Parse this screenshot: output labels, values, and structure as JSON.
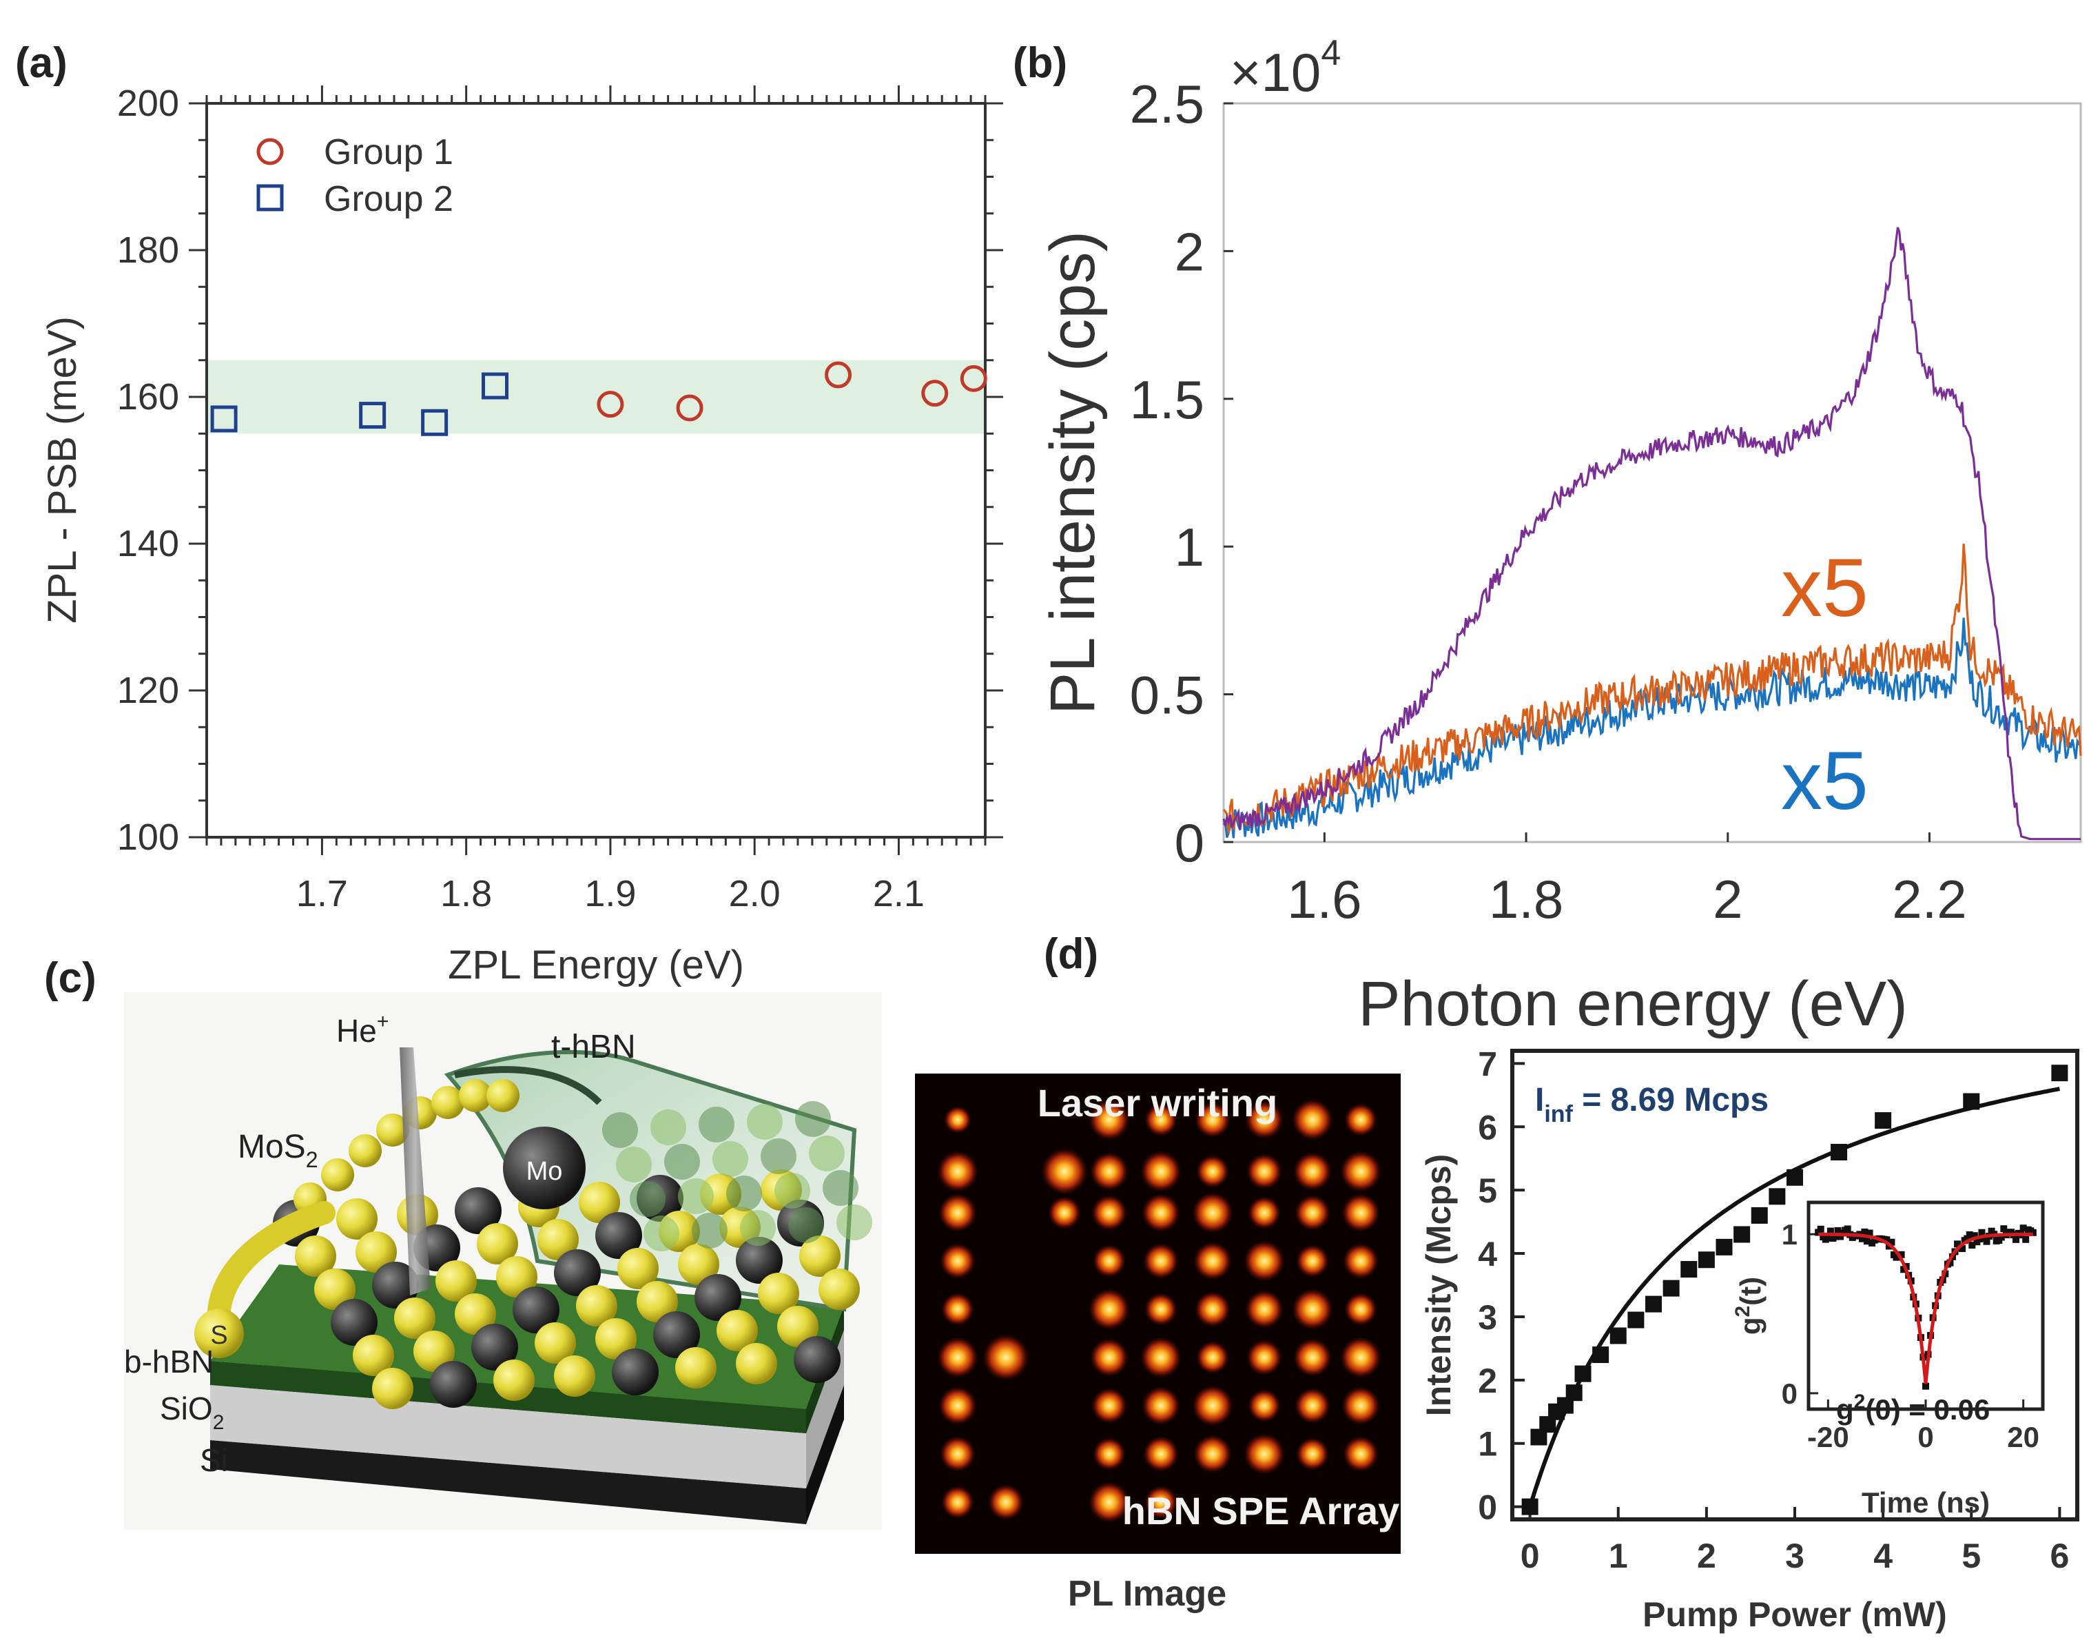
{
  "panels": {
    "a": {
      "label": "(a)",
      "title": "",
      "xlabel": "ZPL Energy (eV)",
      "ylabel": "ZPL - PSB (meV)",
      "legend": [
        {
          "name": "Group 1",
          "marker": "circle",
          "color": "#c0392b"
        },
        {
          "name": "Group 2",
          "marker": "square",
          "color": "#1f3f8f"
        }
      ]
    },
    "b": {
      "label": "(b)",
      "exponent": "×10",
      "exponent_power": "4",
      "ylabel": "PL intensity (cps)",
      "xlabel": "Photon energy (eV)",
      "annotations": [
        {
          "text": "x5",
          "color": "#d95f1a"
        },
        {
          "text": "x5",
          "color": "#1a73c0"
        }
      ]
    },
    "c": {
      "label": "(c)",
      "labels": {
        "he": "He",
        "he_sup": "+",
        "thbn": "t-hBN",
        "mos2": "MoS",
        "mos2_sub": "2",
        "mo": "Mo",
        "s": "S",
        "bhbn": "b-hBN",
        "sio2": "SiO",
        "sio2_sub": "2",
        "si": "Si"
      }
    },
    "d": {
      "label": "(d)",
      "image_top": "Laser writing",
      "image_bottom": "hBN SPE Array",
      "image_caption": "PL Image",
      "plot_xlabel": "Pump Power (mW)",
      "plot_ylabel": "Intensity (Mcps)",
      "iinf_label": "I",
      "iinf_sub": "inf",
      "iinf_value": " = 8.69 Mcps",
      "inset_ylabel": "g",
      "inset_ylabel_sup": "2",
      "inset_ylabel_rest": "(t)",
      "inset_xlabel": "Time (ns)",
      "inset_anno_g": "g",
      "inset_anno_sup": "2",
      "inset_anno_rest": "(0) = 0.06"
    }
  },
  "chart_data": [
    {
      "id": "a",
      "type": "scatter",
      "title": "",
      "xlabel": "ZPL Energy (eV)",
      "ylabel": "ZPL - PSB (meV)",
      "xlim": [
        1.62,
        2.16
      ],
      "ylim": [
        100,
        200
      ],
      "xticks": [
        1.7,
        1.8,
        1.9,
        2.0,
        2.1
      ],
      "xtick_labels": [
        "1.7",
        "1.8",
        "1.9",
        "2.0",
        "2.1"
      ],
      "yticks": [
        100,
        120,
        140,
        160,
        180,
        200
      ],
      "band": [
        155,
        165
      ],
      "series": [
        {
          "name": "Group 1",
          "marker": "circle",
          "x": [
            1.9,
            1.955,
            2.058,
            2.125,
            2.152
          ],
          "y": [
            159,
            158.5,
            163,
            160.5,
            162.5
          ]
        },
        {
          "name": "Group 2",
          "marker": "square",
          "x": [
            1.632,
            1.735,
            1.778,
            1.82
          ],
          "y": [
            157,
            157.5,
            156.5,
            161.5
          ]
        }
      ]
    },
    {
      "id": "b",
      "type": "line",
      "xlabel": "Photon energy (eV)",
      "ylabel": "PL intensity (cps)",
      "xlim": [
        1.5,
        2.35
      ],
      "ylim": [
        0,
        2.5
      ],
      "y_multiplier": "×10^4",
      "xticks": [
        1.6,
        1.8,
        2.0,
        2.2
      ],
      "xtick_labels": [
        "1.6",
        "1.8",
        "2",
        "2.2"
      ],
      "yticks": [
        0,
        0.5,
        1,
        1.5,
        2,
        2.5
      ],
      "ytick_labels": [
        "0",
        "0.5",
        "1",
        "1.5",
        "2",
        "2.5"
      ],
      "series": [
        {
          "name": "purple",
          "color": "#7b2e96",
          "x": [
            1.5,
            1.55,
            1.6,
            1.65,
            1.7,
            1.75,
            1.8,
            1.85,
            1.9,
            1.95,
            2.0,
            2.05,
            2.1,
            2.13,
            2.15,
            2.17,
            2.19,
            2.21,
            2.23,
            2.25,
            2.26,
            2.27,
            2.28,
            2.29,
            2.3,
            2.35
          ],
          "y": [
            0.06,
            0.1,
            0.18,
            0.3,
            0.5,
            0.78,
            1.05,
            1.22,
            1.3,
            1.35,
            1.38,
            1.34,
            1.42,
            1.55,
            1.75,
            2.07,
            1.65,
            1.52,
            1.5,
            1.2,
            0.9,
            0.6,
            0.25,
            0.02,
            0.01,
            0.01
          ]
        },
        {
          "name": "orange x5",
          "color": "#d95f1a",
          "x": [
            1.5,
            1.55,
            1.6,
            1.65,
            1.7,
            1.75,
            1.8,
            1.85,
            1.9,
            1.95,
            2.0,
            2.05,
            2.1,
            2.15,
            2.2,
            2.22,
            2.23,
            2.235,
            2.24,
            2.25,
            2.27,
            2.3,
            2.35
          ],
          "y": [
            0.08,
            0.12,
            0.18,
            0.25,
            0.3,
            0.35,
            0.4,
            0.46,
            0.5,
            0.52,
            0.55,
            0.58,
            0.61,
            0.62,
            0.62,
            0.64,
            0.85,
            1.0,
            0.66,
            0.6,
            0.55,
            0.42,
            0.35
          ]
        },
        {
          "name": "blue x5",
          "color": "#1a73c0",
          "x": [
            1.5,
            1.55,
            1.6,
            1.65,
            1.7,
            1.75,
            1.8,
            1.85,
            1.9,
            1.95,
            2.0,
            2.05,
            2.1,
            2.15,
            2.2,
            2.22,
            2.23,
            2.235,
            2.24,
            2.25,
            2.27,
            2.3,
            2.35
          ],
          "y": [
            0.06,
            0.08,
            0.12,
            0.18,
            0.24,
            0.3,
            0.35,
            0.4,
            0.45,
            0.48,
            0.5,
            0.52,
            0.54,
            0.55,
            0.52,
            0.54,
            0.65,
            0.72,
            0.55,
            0.5,
            0.44,
            0.36,
            0.3
          ]
        }
      ]
    },
    {
      "id": "d-main",
      "type": "scatter",
      "xlabel": "Pump Power (mW)",
      "ylabel": "Intensity (Mcps)",
      "xlim": [
        -0.2,
        6.2
      ],
      "ylim": [
        -0.2,
        7.2
      ],
      "xticks": [
        0,
        1,
        2,
        3,
        4,
        5,
        6
      ],
      "yticks": [
        0,
        1,
        2,
        3,
        4,
        5,
        6,
        7
      ],
      "series": [
        {
          "name": "data",
          "x": [
            0,
            0.1,
            0.2,
            0.3,
            0.4,
            0.5,
            0.6,
            0.8,
            1.0,
            1.2,
            1.4,
            1.6,
            1.8,
            2.0,
            2.2,
            2.4,
            2.6,
            2.8,
            3.0,
            3.5,
            4.0,
            5.0,
            6.0
          ],
          "y": [
            0,
            1.1,
            1.3,
            1.5,
            1.6,
            1.8,
            2.1,
            2.4,
            2.7,
            2.95,
            3.2,
            3.45,
            3.75,
            3.9,
            4.1,
            4.3,
            4.6,
            4.9,
            5.2,
            5.6,
            6.1,
            6.4,
            6.85
          ]
        },
        {
          "name": "fit",
          "I_inf": 8.69,
          "P_sat": 1.9
        }
      ]
    },
    {
      "id": "d-inset",
      "type": "scatter",
      "xlabel": "Time (ns)",
      "ylabel": "g2(t)",
      "xlim": [
        -24,
        24
      ],
      "ylim": [
        -0.1,
        1.2
      ],
      "xticks": [
        -20,
        0,
        20
      ],
      "xtick_labels": [
        "-20",
        "0",
        "20"
      ],
      "yticks": [
        0,
        1
      ],
      "ytick_labels": [
        "0",
        "1"
      ],
      "g2_zero": 0.06,
      "dip_width_ns": 2.8
    }
  ]
}
